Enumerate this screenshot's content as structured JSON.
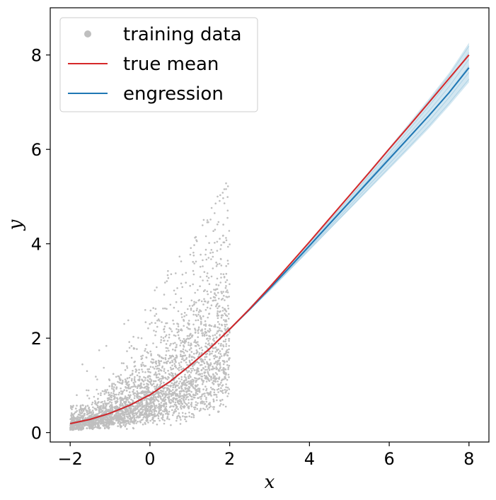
{
  "chart_data": {
    "type": "scatter",
    "title": "",
    "xlabel": "x",
    "ylabel": "y",
    "xlim": [
      -2.5,
      8.5
    ],
    "ylim": [
      -0.2,
      9.0
    ],
    "x_ticks": [
      -2,
      0,
      2,
      4,
      6,
      8
    ],
    "y_ticks": [
      0,
      2,
      4,
      6,
      8
    ],
    "x_tick_labels": [
      "−2",
      "0",
      "2",
      "4",
      "6",
      "8"
    ],
    "y_tick_labels": [
      "0",
      "2",
      "4",
      "6",
      "8"
    ],
    "grid": false,
    "legend_position": "top-left",
    "colors": {
      "training_data": "#bfbfbf",
      "true_mean": "#d62728",
      "engression": "#1f77b4",
      "engression_band": "#9ecae1"
    },
    "series": [
      {
        "name": "training data",
        "kind": "scatter",
        "x_range": [
          -2,
          2
        ],
        "y_range": [
          0,
          5.5
        ],
        "description_points": [
          {
            "x": -2.0,
            "y_low": 0.05,
            "y_high": 1.3
          },
          {
            "x": -1.0,
            "y_low": 0.05,
            "y_high": 2.0
          },
          {
            "x": 0.0,
            "y_low": 0.05,
            "y_high": 3.0
          },
          {
            "x": 1.0,
            "y_low": 0.05,
            "y_high": 4.0
          },
          {
            "x": 2.0,
            "y_low": 0.1,
            "y_high": 5.5
          }
        ]
      },
      {
        "name": "true mean",
        "kind": "line",
        "x": [
          -2,
          -1.5,
          -1,
          -0.5,
          0,
          0.5,
          1,
          1.5,
          2,
          2.5,
          3,
          3.5,
          4,
          4.5,
          5,
          5.5,
          6,
          6.5,
          7,
          7.5,
          8
        ],
        "y": [
          0.19,
          0.28,
          0.41,
          0.58,
          0.8,
          1.08,
          1.42,
          1.78,
          2.19,
          2.62,
          3.08,
          3.56,
          4.04,
          4.53,
          5.02,
          5.51,
          6.01,
          6.5,
          7.0,
          7.5,
          8.0
        ]
      },
      {
        "name": "engression",
        "kind": "line",
        "x": [
          -2,
          -1.5,
          -1,
          -0.5,
          0,
          0.5,
          1,
          1.5,
          2,
          2.5,
          3,
          3.5,
          4,
          4.5,
          5,
          5.5,
          6,
          6.5,
          7,
          7.5,
          8
        ],
        "y": [
          0.19,
          0.28,
          0.41,
          0.58,
          0.8,
          1.08,
          1.42,
          1.78,
          2.19,
          2.61,
          3.05,
          3.5,
          3.96,
          4.42,
          4.88,
          5.34,
          5.8,
          6.26,
          6.72,
          7.2,
          7.73
        ],
        "band_low": [
          0.19,
          0.28,
          0.41,
          0.58,
          0.8,
          1.08,
          1.42,
          1.78,
          2.19,
          2.59,
          3.0,
          3.43,
          3.86,
          4.29,
          4.72,
          5.15,
          5.58,
          6.01,
          6.45,
          6.92,
          7.42
        ],
        "band_high": [
          0.19,
          0.28,
          0.41,
          0.58,
          0.8,
          1.08,
          1.42,
          1.78,
          2.19,
          2.64,
          3.1,
          3.57,
          4.06,
          4.55,
          5.04,
          5.54,
          6.04,
          6.56,
          7.08,
          7.62,
          8.26
        ]
      }
    ],
    "legend": [
      "training data",
      "true mean",
      "engression"
    ]
  }
}
